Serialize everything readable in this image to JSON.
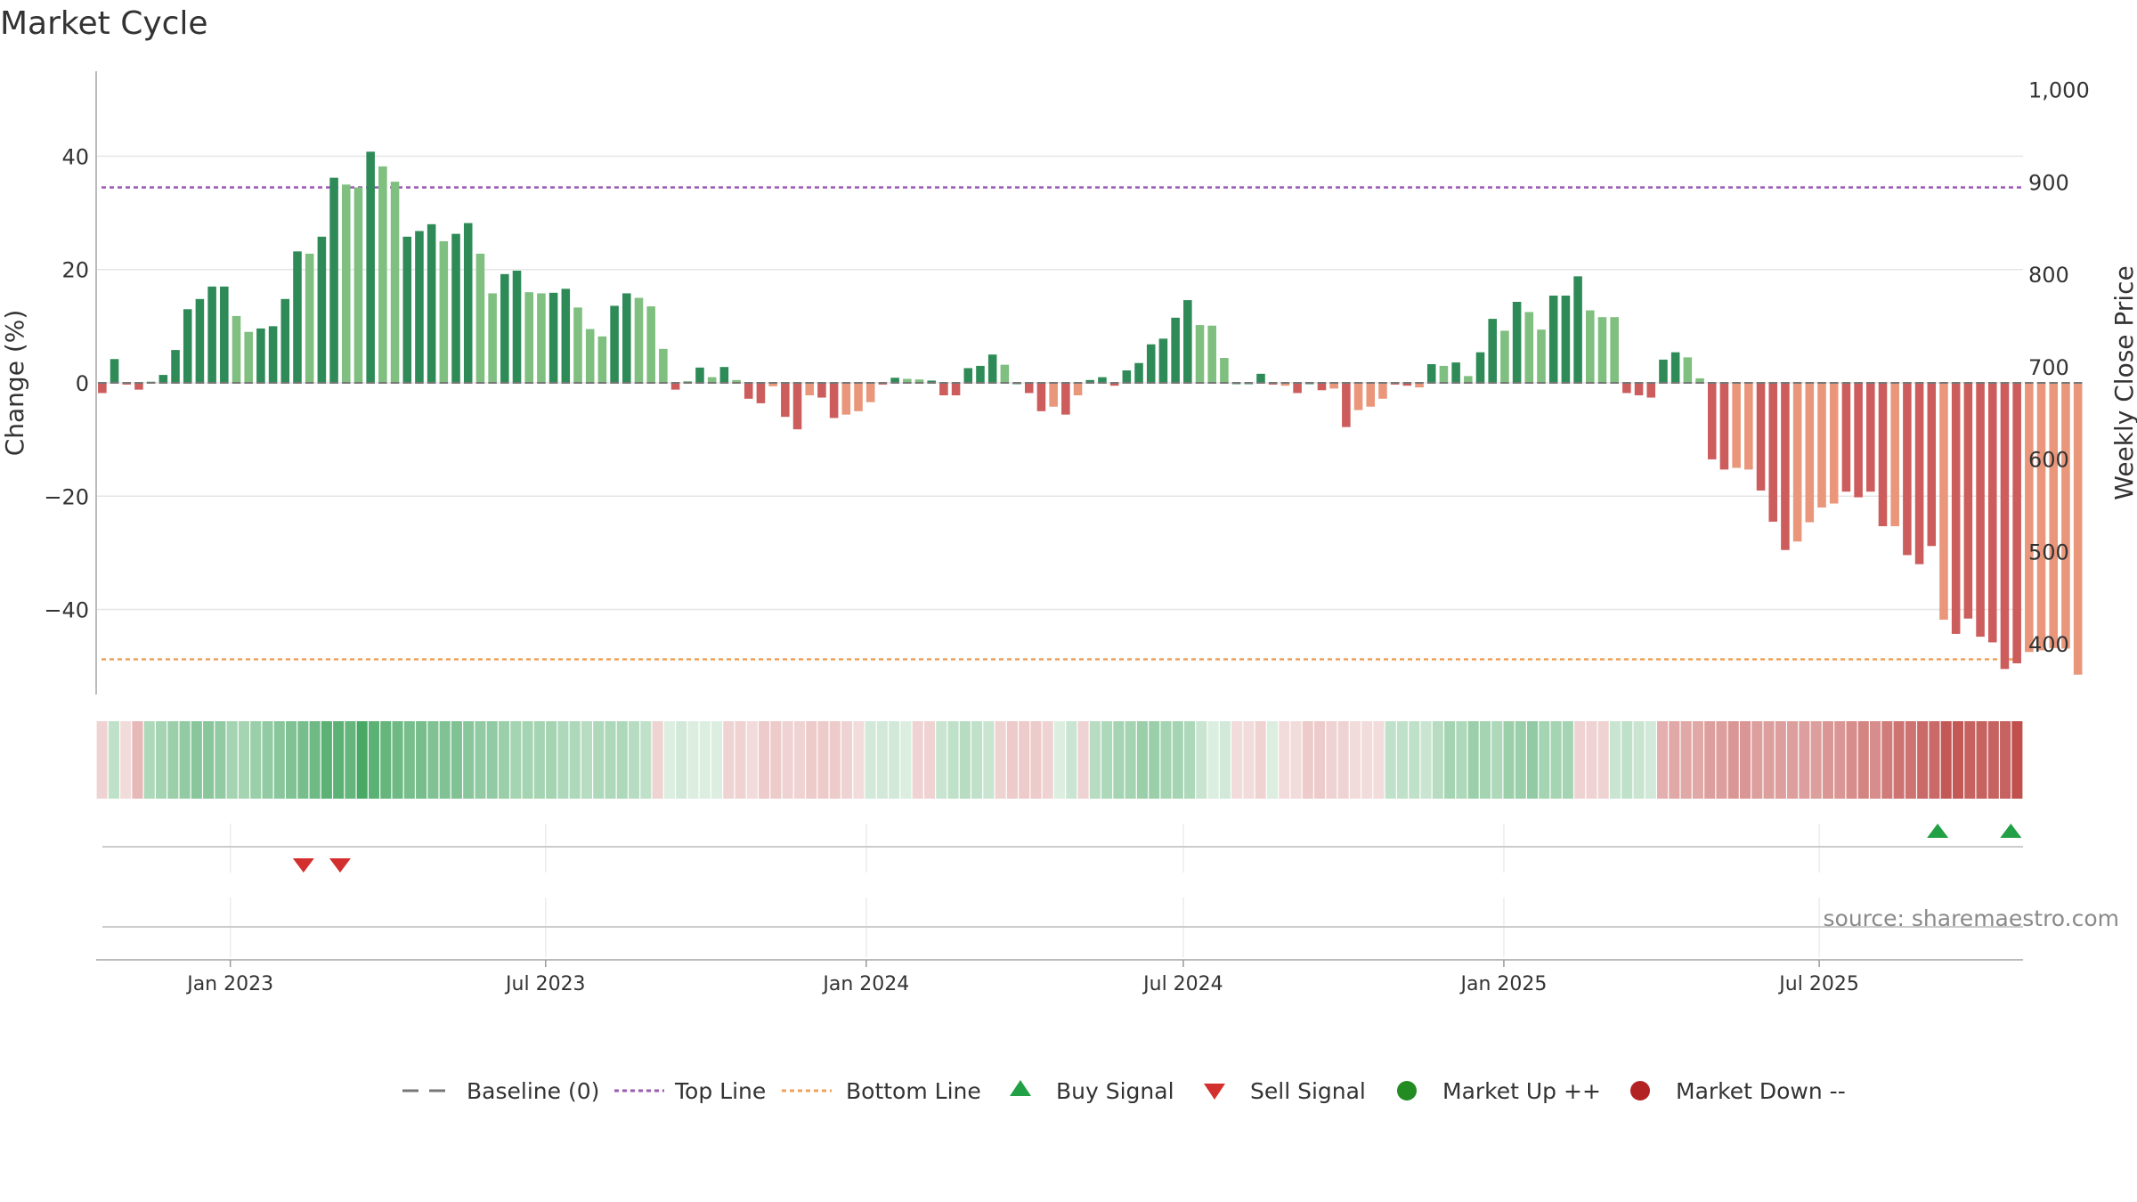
{
  "colors": {
    "up_strong": "#2e8b57",
    "up_light": "#7fbf7f",
    "down_strong": "#cd5c5c",
    "down_light": "#e9967a",
    "top_line": "#9b59b6",
    "bottom_line": "#f0a05a",
    "baseline": "#777777",
    "buy": "#22a045",
    "sell": "#d32f2f",
    "market_up": "#228b22",
    "market_down": "#b22222",
    "grid": "#e6e6e6"
  },
  "chart_data": {
    "type": "bar",
    "title": "Market Cycle",
    "ylabel": "Change (%)",
    "y2label": "Weekly Close Price",
    "ylim": [
      -55,
      55
    ],
    "y2lim": [
      345,
      1020
    ],
    "y_ticks": [
      40,
      20,
      0,
      -20,
      -40
    ],
    "y_tick_labels": [
      "40",
      "20",
      "0",
      "−20",
      "−40"
    ],
    "y2_ticks": [
      1000,
      900,
      800,
      700,
      600,
      500,
      400
    ],
    "y2_tick_labels": [
      "1,000",
      "900",
      "800",
      "700",
      "600",
      "500",
      "400"
    ],
    "x_start": "2022-10-16",
    "x_end": "2025-10-26",
    "x_ticks": [
      "2023-01-01",
      "2023-07-01",
      "2024-01-01",
      "2024-07-01",
      "2025-01-01",
      "2025-07-01"
    ],
    "x_tick_labels": [
      "Jan 2023",
      "Jul 2023",
      "Jan 2024",
      "Jul 2024",
      "Jan 2025",
      "Jul 2025"
    ],
    "top_line": 34.5,
    "bottom_line": -48.8,
    "source": "source: sharemaestro.com",
    "values": [
      -1.8,
      4.2,
      -0.3,
      -1.2,
      0.2,
      1.4,
      5.8,
      13.0,
      14.8,
      17.0,
      17.0,
      11.8,
      9.0,
      9.6,
      10.0,
      14.8,
      23.2,
      22.8,
      25.8,
      36.2,
      35.0,
      34.5,
      40.8,
      38.2,
      35.5,
      25.8,
      26.8,
      28.0,
      25.0,
      26.3,
      28.2,
      22.8,
      15.8,
      19.2,
      19.8,
      16.0,
      15.8,
      15.9,
      16.6,
      13.3,
      9.5,
      8.2,
      13.6,
      15.8,
      15.0,
      13.5,
      6.0,
      -1.2,
      0.3,
      2.7,
      1.0,
      2.8,
      0.5,
      -2.8,
      -3.6,
      -0.6,
      -6.0,
      -8.2,
      -2.2,
      -2.6,
      -6.2,
      -5.6,
      -5.0,
      -3.4,
      -0.3,
      0.9,
      0.7,
      0.6,
      0.4,
      -2.2,
      -2.2,
      2.6,
      3.0,
      5.0,
      3.2,
      0.0,
      -1.8,
      -5.0,
      -4.2,
      -5.6,
      -2.2,
      0.5,
      1.0,
      -0.5,
      2.2,
      3.5,
      6.8,
      7.8,
      11.5,
      14.6,
      10.2,
      10.1,
      4.4,
      0.0,
      0.0,
      1.6,
      -0.3,
      -0.5,
      -1.8,
      0.0,
      -1.3,
      -1.0,
      -7.8,
      -4.8,
      -4.2,
      -2.8,
      -0.3,
      -0.5,
      -0.8,
      3.3,
      3.0,
      3.6,
      1.2,
      5.4,
      11.3,
      9.2,
      14.3,
      12.5,
      9.4,
      15.4,
      15.4,
      18.8,
      12.8,
      11.6,
      11.6,
      -1.8,
      -2.2,
      -2.6,
      4.1,
      5.4,
      4.5,
      0.8,
      -13.5,
      -15.3,
      -15.0,
      -15.3,
      -19.0,
      -24.5,
      -29.5,
      -28.0,
      -24.6,
      -22.0,
      -21.3,
      -19.2,
      -20.2,
      -19.2,
      -25.3,
      -25.3,
      -30.4,
      -32.0,
      -28.8,
      -41.8,
      -44.3,
      -41.6,
      -44.8,
      -45.8,
      -50.5,
      -49.5,
      -47.5,
      -47.2,
      -46.8,
      -46.9,
      -51.5
    ],
    "bar_shade": [
      "s",
      "s",
      "s",
      "s",
      "s",
      "s",
      "s",
      "s",
      "s",
      "s",
      "s",
      "l",
      "l",
      "s",
      "s",
      "s",
      "s",
      "l",
      "s",
      "s",
      "l",
      "l",
      "s",
      "l",
      "l",
      "s",
      "s",
      "s",
      "l",
      "s",
      "s",
      "l",
      "l",
      "s",
      "s",
      "l",
      "l",
      "s",
      "s",
      "l",
      "l",
      "l",
      "s",
      "s",
      "l",
      "l",
      "l",
      "s",
      "l",
      "s",
      "l",
      "s",
      "l",
      "s",
      "s",
      "l",
      "s",
      "s",
      "l",
      "s",
      "s",
      "l",
      "l",
      "l",
      "s",
      "s",
      "l",
      "l",
      "s",
      "s",
      "s",
      "s",
      "s",
      "s",
      "l",
      "s",
      "s",
      "s",
      "l",
      "s",
      "l",
      "s",
      "s",
      "s",
      "s",
      "s",
      "s",
      "s",
      "s",
      "s",
      "l",
      "l",
      "l",
      "s",
      "s",
      "s",
      "s",
      "l",
      "s",
      "s",
      "s",
      "l",
      "s",
      "l",
      "l",
      "l",
      "s",
      "s",
      "l",
      "s",
      "l",
      "s",
      "l",
      "s",
      "s",
      "l",
      "s",
      "l",
      "l",
      "s",
      "s",
      "s",
      "l",
      "l",
      "l",
      "s",
      "s",
      "s",
      "s",
      "s",
      "l",
      "l",
      "s",
      "s",
      "l",
      "l",
      "s",
      "s",
      "s",
      "l",
      "l",
      "l",
      "l",
      "s",
      "s",
      "s",
      "s",
      "l",
      "s",
      "s",
      "s",
      "l",
      "s",
      "s",
      "s",
      "s",
      "s",
      "s",
      "l",
      "l",
      "l",
      "l",
      "l",
      "s"
    ],
    "heat_strength": [
      0.25,
      0.35,
      0.2,
      0.4,
      0.45,
      0.5,
      0.55,
      0.6,
      0.65,
      0.65,
      0.6,
      0.5,
      0.5,
      0.55,
      0.6,
      0.65,
      0.7,
      0.75,
      0.8,
      0.9,
      0.9,
      0.85,
      1.0,
      0.9,
      0.85,
      0.8,
      0.75,
      0.75,
      0.7,
      0.7,
      0.7,
      0.65,
      0.6,
      0.6,
      0.55,
      0.5,
      0.5,
      0.5,
      0.5,
      0.45,
      0.45,
      0.4,
      0.45,
      0.45,
      0.45,
      0.4,
      0.35,
      0.25,
      0.2,
      0.25,
      0.2,
      0.2,
      0.2,
      0.25,
      0.25,
      0.2,
      0.3,
      0.3,
      0.25,
      0.25,
      0.3,
      0.3,
      0.3,
      0.25,
      0.2,
      0.25,
      0.25,
      0.25,
      0.2,
      0.25,
      0.25,
      0.3,
      0.35,
      0.4,
      0.35,
      0.3,
      0.25,
      0.3,
      0.3,
      0.3,
      0.25,
      0.2,
      0.3,
      0.25,
      0.4,
      0.45,
      0.5,
      0.5,
      0.55,
      0.55,
      0.5,
      0.5,
      0.45,
      0.3,
      0.2,
      0.25,
      0.2,
      0.2,
      0.25,
      0.2,
      0.2,
      0.2,
      0.3,
      0.3,
      0.25,
      0.25,
      0.2,
      0.2,
      0.2,
      0.35,
      0.35,
      0.35,
      0.3,
      0.4,
      0.5,
      0.45,
      0.55,
      0.5,
      0.45,
      0.55,
      0.55,
      0.6,
      0.5,
      0.5,
      0.5,
      0.25,
      0.25,
      0.25,
      0.3,
      0.35,
      0.3,
      0.25,
      0.45,
      0.5,
      0.5,
      0.5,
      0.55,
      0.55,
      0.6,
      0.6,
      0.55,
      0.55,
      0.55,
      0.55,
      0.55,
      0.55,
      0.6,
      0.6,
      0.65,
      0.7,
      0.65,
      0.75,
      0.8,
      0.8,
      0.85,
      0.85,
      0.95,
      0.95,
      0.9,
      0.9,
      0.9,
      0.9,
      1.0
    ],
    "sell_signals": [
      "2023-02-12",
      "2023-03-05"
    ],
    "buy_signals": [
      "2025-09-07",
      "2025-10-19"
    ],
    "legend": [
      {
        "key": "baseline",
        "label": "Baseline (0)",
        "symbol": "dash"
      },
      {
        "key": "top",
        "label": "Top Line",
        "symbol": "dot-purple"
      },
      {
        "key": "bottom",
        "label": "Bottom Line",
        "symbol": "dot-orange"
      },
      {
        "key": "buy",
        "label": "Buy Signal",
        "symbol": "tri-up"
      },
      {
        "key": "sell",
        "label": "Sell Signal",
        "symbol": "tri-down"
      },
      {
        "key": "mup",
        "label": "Market Up ++",
        "symbol": "circle-green"
      },
      {
        "key": "mdown",
        "label": "Market Down --",
        "symbol": "circle-red"
      }
    ]
  }
}
